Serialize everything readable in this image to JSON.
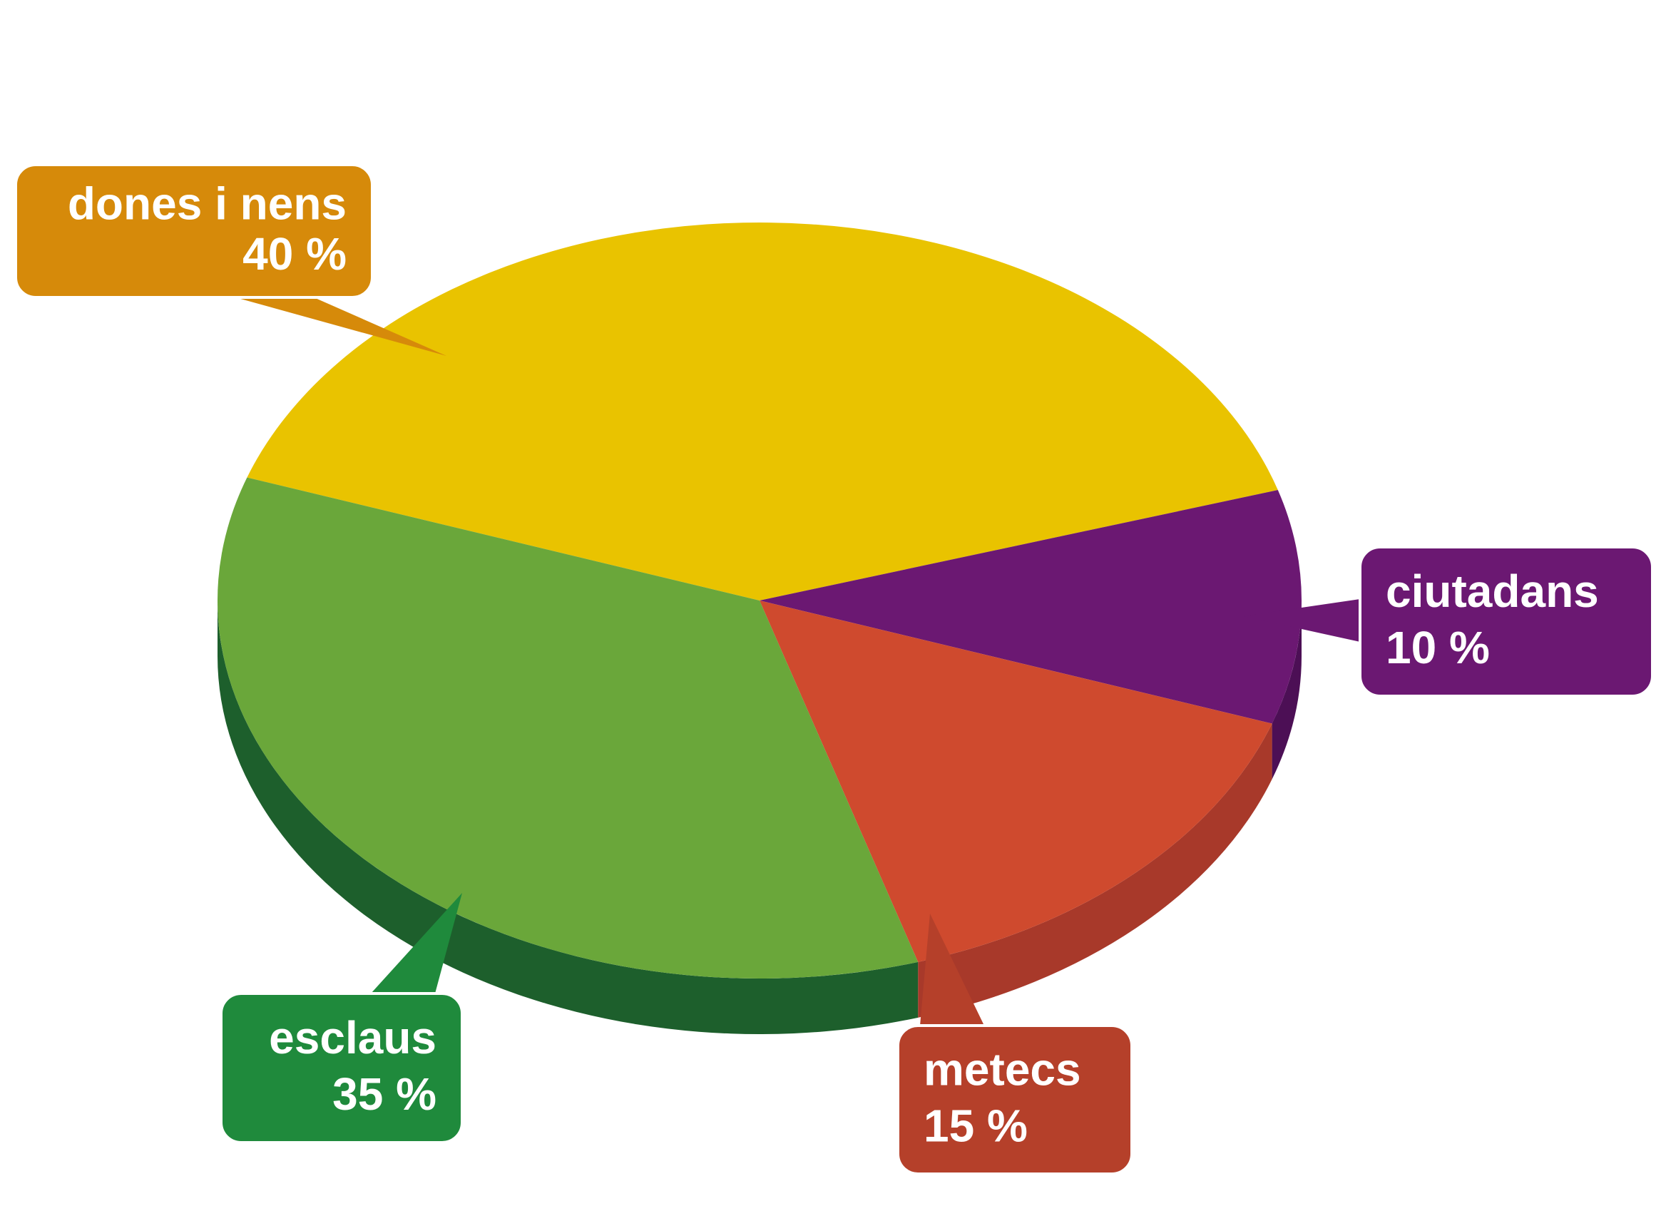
{
  "chart_data": {
    "type": "pie",
    "categories": [
      "dones i nens",
      "ciutadans",
      "metecs",
      "esclaus"
    ],
    "values": [
      40,
      10,
      15,
      35
    ],
    "value_labels": [
      "40 %",
      "10 %",
      "15 %",
      "35 %"
    ],
    "colors": [
      "#e9c300",
      "#6b1872",
      "#cf4a2e",
      "#6aa73a"
    ],
    "side_colors": [
      "#b89a00",
      "#4c0f55",
      "#a8392a",
      "#1d5f2c"
    ],
    "label_colors": [
      "#d68a0a",
      "#6b1872",
      "#b5402a",
      "#1f8a3c"
    ]
  }
}
